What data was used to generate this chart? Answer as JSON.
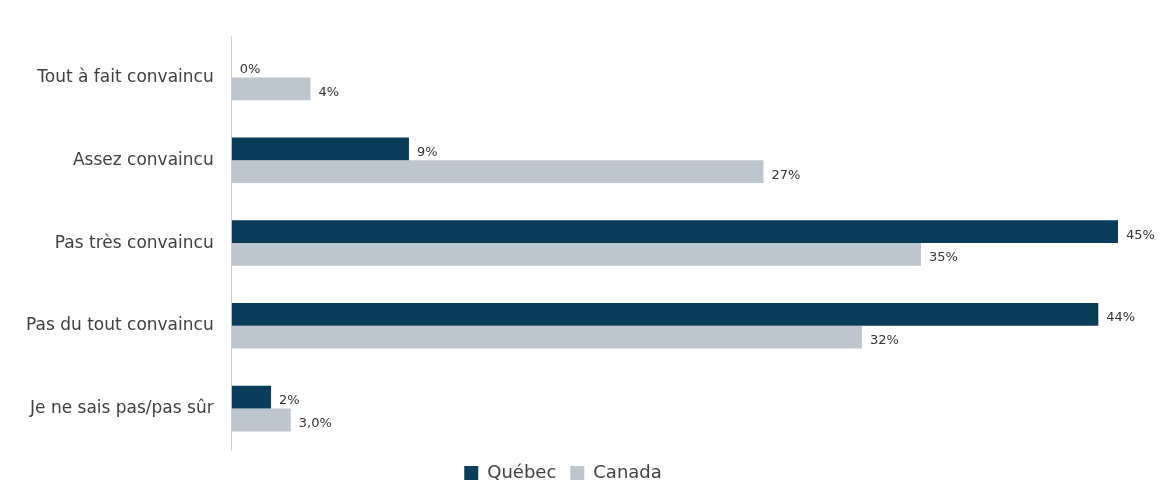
{
  "chart_data": {
    "type": "bar",
    "orientation": "horizontal",
    "categories": [
      "Tout à fait convaincu",
      "Assez convaincu",
      "Pas très convaincu",
      "Pas du tout convaincu",
      "Je ne sais pas/pas sûr"
    ],
    "series": [
      {
        "name": "Québec",
        "color": "#0b3d5b",
        "values": [
          0,
          9,
          45,
          44,
          2
        ],
        "value_labels": [
          "0%",
          "9%",
          "45%",
          "44%",
          "2%"
        ]
      },
      {
        "name": "Canada",
        "color": "#bdc6cf",
        "values": [
          4,
          27,
          35,
          32,
          3
        ],
        "value_labels": [
          "4%",
          "27%",
          "35%",
          "32%",
          "3,0%"
        ]
      }
    ],
    "legend": "bottom"
  }
}
